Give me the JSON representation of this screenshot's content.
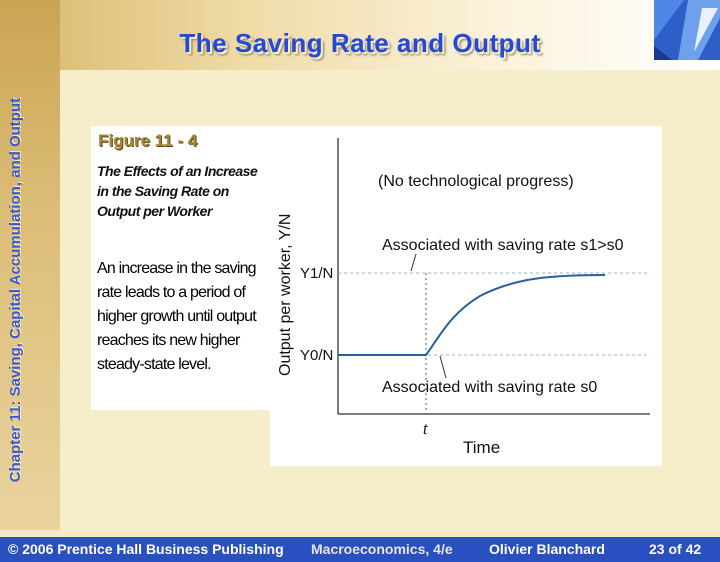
{
  "slide": {
    "title": "The Saving Rate and Output",
    "side_text": "Chapter 11: Saving, Capital Accumulation, and Output"
  },
  "figure": {
    "label": "Figure 11 - 4",
    "subtitle": "The Effects of an Increase in the Saving Rate on Output per Worker",
    "body": "An increase in the saving rate leads to a period of higher growth until output reaches its new higher steady-state level."
  },
  "diagram": {
    "note": "(No technological progress)",
    "y_axis_label": "Output per worker, Y/N",
    "x_axis_label": "Time",
    "t_label": "t",
    "y1_label": "Y1/N",
    "y0_label": "Y0/N",
    "upper_annotation": "Associated with saving rate s1>s0",
    "lower_annotation": "Associated with saving rate s0"
  },
  "footer": {
    "publisher": "© 2006 Prentice Hall Business Publishing",
    "book": "Macroeconomics, 4/e",
    "author": "Olivier Blanchard",
    "page": "23 of 42"
  },
  "colors": {
    "title": "#2448d8",
    "footer_bg": "#2850c0",
    "curve": "#2a5f9e",
    "dashed": "#8fb3d9"
  }
}
